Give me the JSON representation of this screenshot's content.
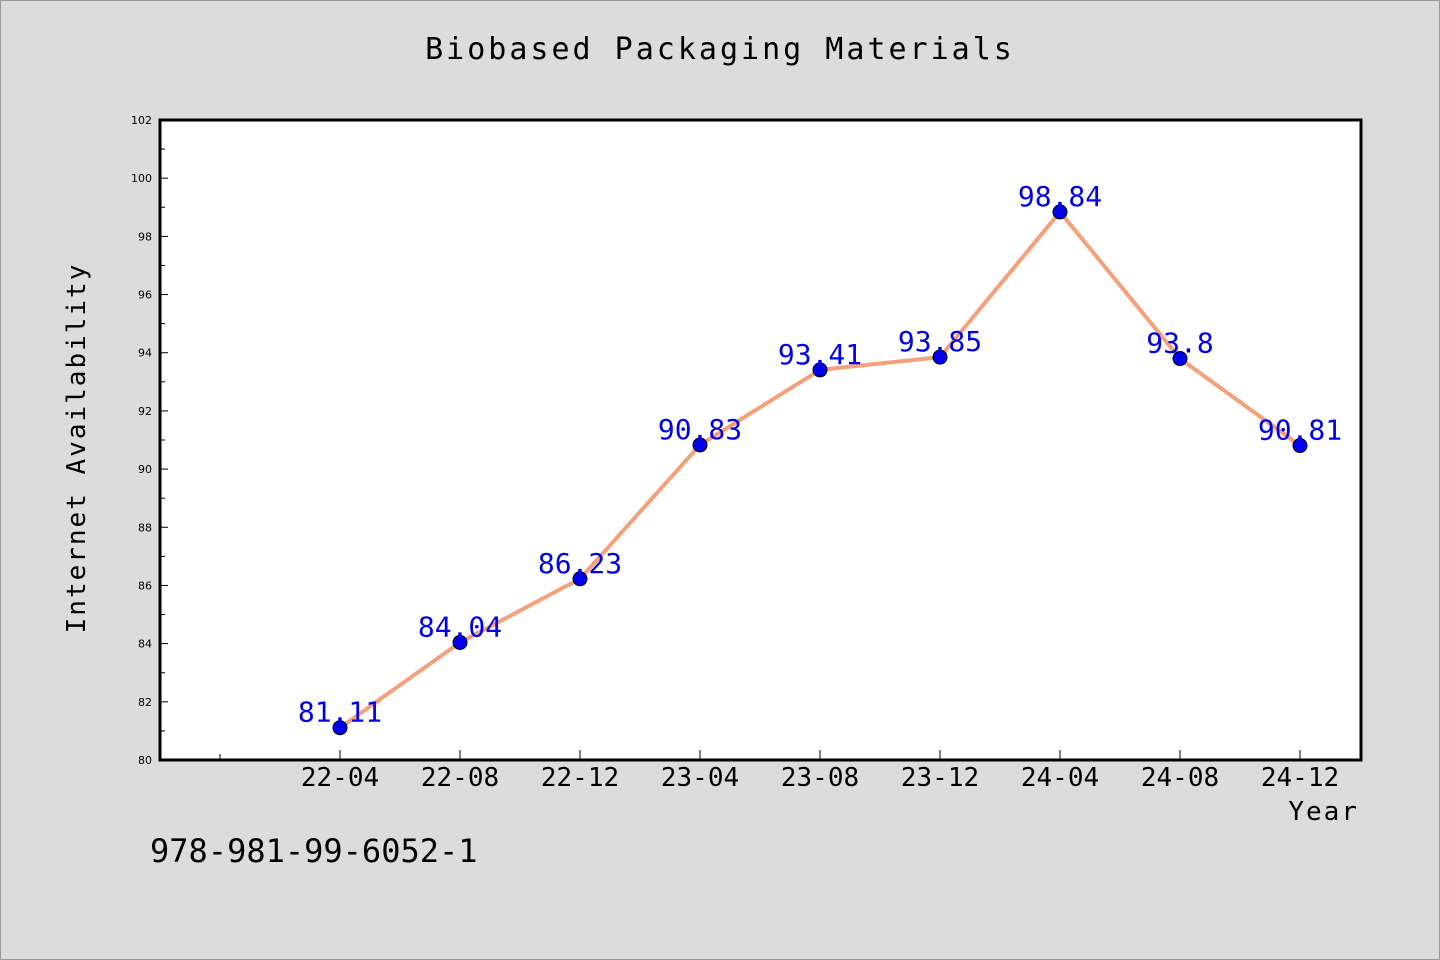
{
  "footer_code": "978-981-99-6052-1",
  "chart_data": {
    "type": "line",
    "title": "Biobased Packaging Materials",
    "xlabel": "Year",
    "ylabel": "Internet Availability",
    "categories": [
      "22-04",
      "22-08",
      "22-12",
      "23-04",
      "23-08",
      "23-12",
      "24-04",
      "24-08",
      "24-12"
    ],
    "series": [
      {
        "values": [
          81.11,
          84.04,
          86.23,
          90.83,
          93.41,
          93.85,
          98.84,
          93.8,
          90.81
        ],
        "labels": [
          "81.11",
          "84.04",
          "86.23",
          "90.83",
          "93.41",
          "93.85",
          "98.84",
          "93.8",
          "90.81"
        ],
        "line_color": "#f4a07a",
        "marker_color": "#0000ee"
      }
    ],
    "ylim": [
      80,
      102
    ],
    "yticks": [
      80,
      82,
      84,
      86,
      88,
      90,
      92,
      94,
      96,
      98,
      100,
      102
    ],
    "grid": false,
    "legend": "none"
  }
}
